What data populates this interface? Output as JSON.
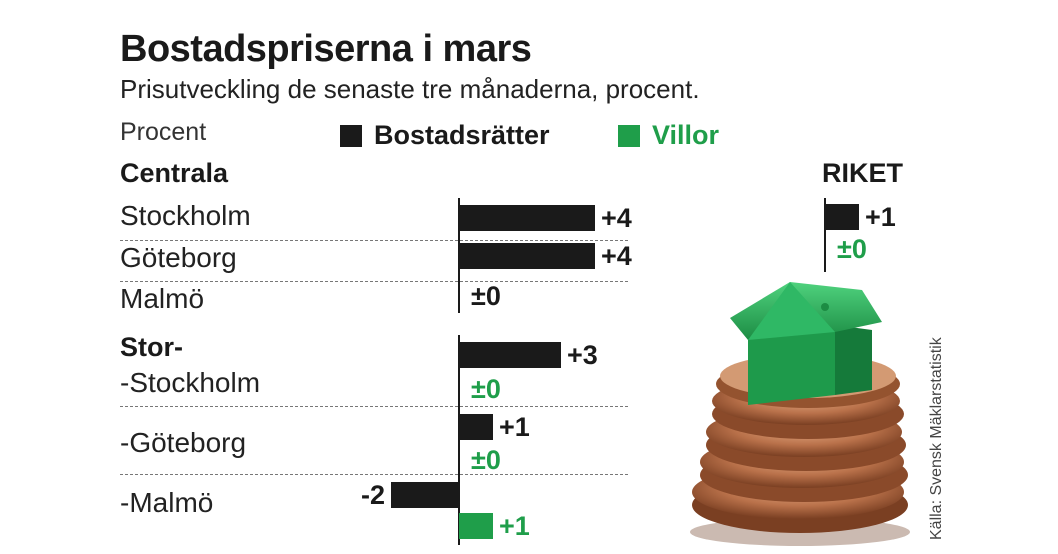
{
  "title": "Bostadspriserna i mars",
  "subtitle": "Prisutveckling de senaste tre månaderna, procent.",
  "source": "Källa: Svensk Mäklarstatistik",
  "colors": {
    "bostadsratter": "#1a1a1a",
    "villor": "#1f9e4a"
  },
  "chart_data": {
    "type": "bar",
    "orientation": "horizontal",
    "ylabel": "Procent",
    "legend": [
      "Bostadsrätter",
      "Villor"
    ],
    "groups": [
      {
        "name": "Centrala",
        "categories": [
          "Stockholm",
          "Göteborg",
          "Malmö"
        ],
        "series": [
          {
            "name": "Bostadsrätter",
            "values": [
              4,
              4,
              0
            ],
            "labels": [
              "+4",
              "+4",
              "±0"
            ]
          }
        ]
      },
      {
        "name": "Stor-",
        "categories": [
          "-Stockholm",
          "-Göteborg",
          "-Malmö"
        ],
        "series": [
          {
            "name": "Bostadsrätter",
            "values": [
              3,
              1,
              -2
            ],
            "labels": [
              "+3",
              "+1",
              "-2"
            ]
          },
          {
            "name": "Villor",
            "values": [
              0,
              0,
              1
            ],
            "labels": [
              "±0",
              "±0",
              "+1"
            ]
          }
        ]
      },
      {
        "name": "RIKET",
        "categories": [
          ""
        ],
        "series": [
          {
            "name": "Bostadsrätter",
            "values": [
              1
            ],
            "labels": [
              "+1"
            ]
          },
          {
            "name": "Villor",
            "values": [
              0
            ],
            "labels": [
              "±0"
            ]
          }
        ]
      }
    ]
  }
}
